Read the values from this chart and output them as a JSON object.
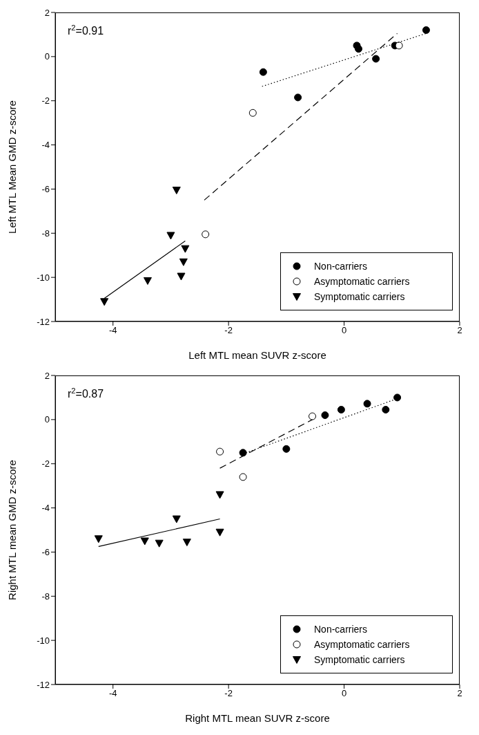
{
  "chart_data": [
    {
      "type": "scatter",
      "xlabel": "Left MTL mean SUVR z-score",
      "ylabel": "Left MTL Mean GMD z-score",
      "annotations": [
        "r$^{2}$=0.91"
      ],
      "xlim": [
        -5,
        2
      ],
      "xticks": [
        -4,
        -2,
        0,
        2
      ],
      "ylim": [
        -12,
        2
      ],
      "yticks": [
        -12,
        -10,
        -8,
        -6,
        -4,
        -2,
        0,
        2
      ],
      "legend": "bottom right",
      "grid": false,
      "series": [
        {
          "name": "Non-carriers",
          "color": "#000000",
          "marker": "circle",
          "x": [
            1.42,
            0.22,
            0.25,
            0.55,
            -1.4,
            -0.8,
            0.88
          ],
          "values": [
            1.2,
            0.5,
            0.35,
            -0.1,
            -0.7,
            -1.85,
            0.5
          ]
        },
        {
          "name": "Asymptomatic carriers",
          "color": "#ffffff",
          "marker": "circle",
          "x": [
            -1.58,
            0.95,
            -2.4
          ],
          "values": [
            -2.55,
            0.5,
            -8.05
          ]
        },
        {
          "name": "Symptomatic carriers",
          "color": "#000000",
          "marker": "triangle",
          "x": [
            -2.9,
            -3.0,
            -2.75,
            -2.78,
            -2.82,
            -3.4,
            -4.15
          ],
          "values": [
            -6.05,
            -8.1,
            -8.7,
            -9.3,
            -9.95,
            -10.15,
            -11.1
          ]
        },
        {
          "type": "line",
          "color": "#000000",
          "marker": "none",
          "line_style": "dotted",
          "x": [
            -1.42,
            1.42
          ],
          "values": [
            -1.35,
            1.05
          ]
        },
        {
          "type": "line",
          "color": "#000000",
          "marker": "none",
          "line_style": "dashed",
          "x": [
            -2.42,
            0.92
          ],
          "values": [
            -6.5,
            1.05
          ]
        },
        {
          "type": "line",
          "color": "#000000",
          "marker": "none",
          "line_style": "solid",
          "x": [
            -4.15,
            -2.75
          ],
          "values": [
            -10.95,
            -8.35
          ]
        }
      ]
    },
    {
      "type": "scatter",
      "xlabel": "Right MTL mean SUVR z-score",
      "ylabel": "Right MTL mean GMD z-score",
      "annotations": [
        "r$^{2}$=0.87"
      ],
      "xlim": [
        -5,
        2
      ],
      "xticks": [
        -4,
        -2,
        0,
        2
      ],
      "ylim": [
        -12,
        2
      ],
      "yticks": [
        -12,
        -10,
        -8,
        -6,
        -4,
        -2,
        0,
        2
      ],
      "legend": "bottom right",
      "grid": false,
      "series": [
        {
          "name": "Non-carriers",
          "color": "#000000",
          "marker": "circle",
          "x": [
            0.92,
            0.72,
            0.4,
            -0.05,
            -0.33,
            -1.75,
            -1.0
          ],
          "values": [
            1.0,
            0.45,
            0.72,
            0.45,
            0.2,
            -1.5,
            -1.33
          ]
        },
        {
          "name": "Asymptomatic carriers",
          "color": "#ffffff",
          "marker": "circle",
          "x": [
            -0.55,
            -2.15,
            -1.75
          ],
          "values": [
            0.15,
            -1.45,
            -2.6
          ]
        },
        {
          "name": "Symptomatic carriers",
          "color": "#000000",
          "marker": "triangle",
          "x": [
            -4.25,
            -3.45,
            -3.2,
            -2.72,
            -2.9,
            -2.15,
            -2.15
          ],
          "values": [
            -5.4,
            -5.5,
            -5.6,
            -5.55,
            -4.5,
            -3.4,
            -5.1
          ]
        },
        {
          "type": "line",
          "color": "#000000",
          "marker": "none",
          "line_style": "dotted",
          "x": [
            -1.75,
            0.92
          ],
          "values": [
            -1.55,
            0.95
          ]
        },
        {
          "type": "line",
          "color": "#000000",
          "marker": "none",
          "line_style": "dashed",
          "x": [
            -2.15,
            -0.55
          ],
          "values": [
            -2.2,
            0.0
          ]
        },
        {
          "type": "line",
          "color": "#000000",
          "marker": "none",
          "line_style": "solid",
          "x": [
            -4.25,
            -2.15
          ],
          "values": [
            -5.75,
            -4.5
          ]
        }
      ]
    }
  ]
}
